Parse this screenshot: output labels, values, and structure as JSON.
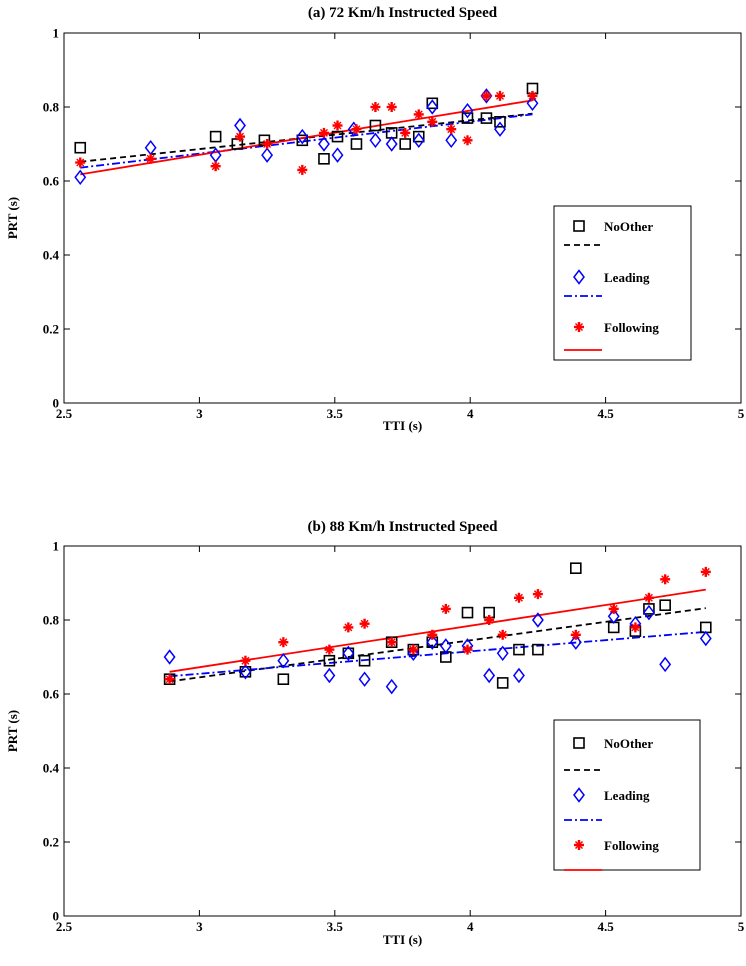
{
  "chart_data": [
    {
      "type": "scatter",
      "title": "(a) 72 Km/h Instructed Speed",
      "xlabel": "TTI (s)",
      "ylabel": "PRT (s)",
      "xlim": [
        2.5,
        5
      ],
      "ylim": [
        0,
        1
      ],
      "xticks": [
        "2.5",
        "3",
        "3.5",
        "4",
        "4.5",
        "5"
      ],
      "yticks": [
        "0",
        "0.2",
        "0.4",
        "0.6",
        "0.8",
        "1"
      ],
      "legend_position": "right",
      "series": [
        {
          "name": "NoOther",
          "kind": "scatter",
          "marker": "square",
          "color": "#000000",
          "points": [
            [
              2.56,
              0.69
            ],
            [
              3.06,
              0.72
            ],
            [
              3.14,
              0.7
            ],
            [
              3.24,
              0.71
            ],
            [
              3.38,
              0.71
            ],
            [
              3.46,
              0.66
            ],
            [
              3.51,
              0.72
            ],
            [
              3.58,
              0.7
            ],
            [
              3.65,
              0.75
            ],
            [
              3.71,
              0.73
            ],
            [
              3.76,
              0.7
            ],
            [
              3.81,
              0.72
            ],
            [
              3.86,
              0.81
            ],
            [
              3.99,
              0.77
            ],
            [
              4.06,
              0.77
            ],
            [
              4.11,
              0.76
            ],
            [
              4.23,
              0.85
            ]
          ]
        },
        {
          "name": "",
          "kind": "fit",
          "style": "dashed",
          "color": "#000000",
          "points": [
            [
              2.56,
              0.652
            ],
            [
              4.23,
              0.782
            ]
          ]
        },
        {
          "name": "Leading",
          "kind": "scatter",
          "marker": "diamond",
          "color": "#0000ff",
          "points": [
            [
              2.56,
              0.61
            ],
            [
              2.82,
              0.69
            ],
            [
              3.06,
              0.67
            ],
            [
              3.15,
              0.75
            ],
            [
              3.25,
              0.67
            ],
            [
              3.38,
              0.72
            ],
            [
              3.46,
              0.7
            ],
            [
              3.51,
              0.67
            ],
            [
              3.57,
              0.74
            ],
            [
              3.65,
              0.71
            ],
            [
              3.71,
              0.7
            ],
            [
              3.81,
              0.71
            ],
            [
              3.86,
              0.8
            ],
            [
              3.93,
              0.71
            ],
            [
              3.99,
              0.79
            ],
            [
              4.06,
              0.83
            ],
            [
              4.11,
              0.74
            ],
            [
              4.23,
              0.81
            ]
          ]
        },
        {
          "name": "",
          "kind": "fit",
          "style": "dashdot",
          "color": "#0000ff",
          "points": [
            [
              2.56,
              0.636
            ],
            [
              4.23,
              0.78
            ]
          ]
        },
        {
          "name": "Following",
          "kind": "scatter",
          "marker": "star",
          "color": "#ff0000",
          "points": [
            [
              2.56,
              0.65
            ],
            [
              2.82,
              0.66
            ],
            [
              3.06,
              0.64
            ],
            [
              3.15,
              0.72
            ],
            [
              3.25,
              0.7
            ],
            [
              3.38,
              0.63
            ],
            [
              3.46,
              0.73
            ],
            [
              3.51,
              0.75
            ],
            [
              3.58,
              0.74
            ],
            [
              3.65,
              0.8
            ],
            [
              3.71,
              0.8
            ],
            [
              3.76,
              0.73
            ],
            [
              3.81,
              0.78
            ],
            [
              3.86,
              0.76
            ],
            [
              3.93,
              0.74
            ],
            [
              3.99,
              0.71
            ],
            [
              4.06,
              0.83
            ],
            [
              4.11,
              0.83
            ],
            [
              4.23,
              0.83
            ]
          ]
        },
        {
          "name": "",
          "kind": "fit",
          "style": "solid",
          "color": "#ff0000",
          "points": [
            [
              2.56,
              0.618
            ],
            [
              4.23,
              0.818
            ]
          ]
        }
      ]
    },
    {
      "type": "scatter",
      "title": "(b) 88 Km/h Instructed Speed",
      "xlabel": "TTI (s)",
      "ylabel": "PRT (s)",
      "xlim": [
        2.5,
        5
      ],
      "ylim": [
        0,
        1
      ],
      "xticks": [
        "2.5",
        "3",
        "3.5",
        "4",
        "4.5",
        "5"
      ],
      "yticks": [
        "0",
        "0.2",
        "0.4",
        "0.6",
        "0.8",
        "1"
      ],
      "legend_position": "bottom-right",
      "series": [
        {
          "name": "NoOther",
          "kind": "scatter",
          "marker": "square",
          "color": "#000000",
          "points": [
            [
              2.89,
              0.64
            ],
            [
              3.17,
              0.66
            ],
            [
              3.31,
              0.64
            ],
            [
              3.48,
              0.69
            ],
            [
              3.55,
              0.71
            ],
            [
              3.61,
              0.69
            ],
            [
              3.71,
              0.74
            ],
            [
              3.79,
              0.72
            ],
            [
              3.86,
              0.74
            ],
            [
              3.91,
              0.7
            ],
            [
              3.99,
              0.82
            ],
            [
              4.07,
              0.82
            ],
            [
              4.12,
              0.63
            ],
            [
              4.18,
              0.72
            ],
            [
              4.25,
              0.72
            ],
            [
              4.39,
              0.94
            ],
            [
              4.53,
              0.78
            ],
            [
              4.61,
              0.77
            ],
            [
              4.66,
              0.83
            ],
            [
              4.72,
              0.84
            ],
            [
              4.87,
              0.78
            ]
          ]
        },
        {
          "name": "",
          "kind": "fit",
          "style": "dashed",
          "color": "#000000",
          "points": [
            [
              2.89,
              0.634
            ],
            [
              4.87,
              0.832
            ]
          ]
        },
        {
          "name": "Leading",
          "kind": "scatter",
          "marker": "diamond",
          "color": "#0000ff",
          "points": [
            [
              2.89,
              0.7
            ],
            [
              3.17,
              0.66
            ],
            [
              3.31,
              0.69
            ],
            [
              3.48,
              0.65
            ],
            [
              3.55,
              0.71
            ],
            [
              3.61,
              0.64
            ],
            [
              3.71,
              0.62
            ],
            [
              3.79,
              0.71
            ],
            [
              3.86,
              0.74
            ],
            [
              3.91,
              0.73
            ],
            [
              3.99,
              0.73
            ],
            [
              4.07,
              0.65
            ],
            [
              4.12,
              0.71
            ],
            [
              4.18,
              0.65
            ],
            [
              4.25,
              0.8
            ],
            [
              4.39,
              0.74
            ],
            [
              4.53,
              0.81
            ],
            [
              4.61,
              0.79
            ],
            [
              4.66,
              0.82
            ],
            [
              4.72,
              0.68
            ],
            [
              4.87,
              0.75
            ]
          ]
        },
        {
          "name": "",
          "kind": "fit",
          "style": "dashdot",
          "color": "#0000ff",
          "points": [
            [
              2.89,
              0.648
            ],
            [
              4.87,
              0.768
            ]
          ]
        },
        {
          "name": "Following",
          "kind": "scatter",
          "marker": "star",
          "color": "#ff0000",
          "points": [
            [
              2.89,
              0.64
            ],
            [
              3.17,
              0.69
            ],
            [
              3.31,
              0.74
            ],
            [
              3.48,
              0.72
            ],
            [
              3.55,
              0.78
            ],
            [
              3.61,
              0.79
            ],
            [
              3.71,
              0.74
            ],
            [
              3.79,
              0.72
            ],
            [
              3.86,
              0.76
            ],
            [
              3.91,
              0.83
            ],
            [
              3.99,
              0.72
            ],
            [
              4.07,
              0.8
            ],
            [
              4.12,
              0.76
            ],
            [
              4.18,
              0.86
            ],
            [
              4.25,
              0.87
            ],
            [
              4.39,
              0.76
            ],
            [
              4.53,
              0.83
            ],
            [
              4.61,
              0.78
            ],
            [
              4.66,
              0.86
            ],
            [
              4.72,
              0.91
            ],
            [
              4.87,
              0.93
            ]
          ]
        },
        {
          "name": "",
          "kind": "fit",
          "style": "solid",
          "color": "#ff0000",
          "points": [
            [
              2.89,
              0.66
            ],
            [
              4.87,
              0.882
            ]
          ]
        }
      ]
    }
  ]
}
